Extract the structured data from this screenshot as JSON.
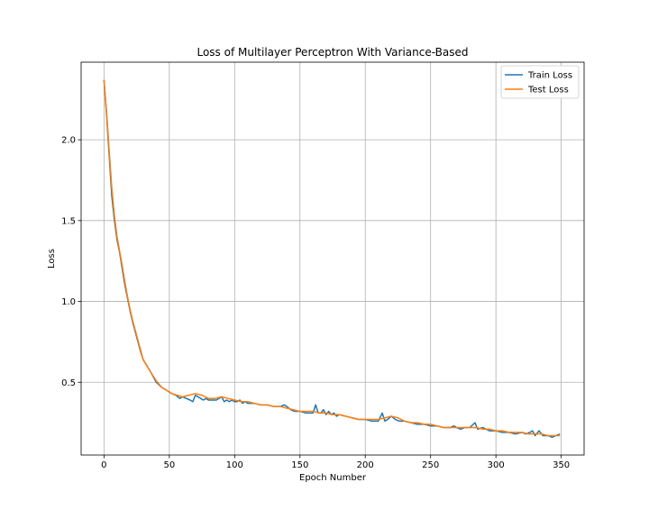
{
  "chart_data": {
    "type": "line",
    "title": "Loss of Multilayer Perceptron With Variance-Based",
    "xlabel": "Epoch Number",
    "ylabel": "Loss",
    "xlim": [
      -17.5,
      367.5
    ],
    "ylim": [
      0.05,
      2.48
    ],
    "xticks": [
      0,
      50,
      100,
      150,
      200,
      250,
      300,
      350
    ],
    "yticks": [
      0.5,
      1.0,
      1.5,
      2.0
    ],
    "ytick_labels": [
      "0.5",
      "1.0",
      "1.5",
      "2.0"
    ],
    "grid": true,
    "legend_position": "top-right",
    "series": [
      {
        "name": "Train Loss",
        "color": "#1f77b4",
        "points": [
          [
            0,
            2.37
          ],
          [
            2,
            2.15
          ],
          [
            4,
            1.9
          ],
          [
            6,
            1.65
          ],
          [
            8,
            1.5
          ],
          [
            10,
            1.38
          ],
          [
            12,
            1.3
          ],
          [
            14,
            1.2
          ],
          [
            16,
            1.1
          ],
          [
            18,
            1.02
          ],
          [
            20,
            0.94
          ],
          [
            22,
            0.87
          ],
          [
            24,
            0.81
          ],
          [
            26,
            0.75
          ],
          [
            28,
            0.69
          ],
          [
            30,
            0.64
          ],
          [
            33,
            0.6
          ],
          [
            36,
            0.56
          ],
          [
            40,
            0.5
          ],
          [
            44,
            0.47
          ],
          [
            48,
            0.45
          ],
          [
            52,
            0.43
          ],
          [
            55,
            0.42
          ],
          [
            58,
            0.4
          ],
          [
            60,
            0.41
          ],
          [
            63,
            0.4
          ],
          [
            66,
            0.39
          ],
          [
            68,
            0.38
          ],
          [
            70,
            0.42
          ],
          [
            72,
            0.41
          ],
          [
            74,
            0.4
          ],
          [
            76,
            0.39
          ],
          [
            78,
            0.4
          ],
          [
            80,
            0.39
          ],
          [
            83,
            0.39
          ],
          [
            86,
            0.39
          ],
          [
            88,
            0.4
          ],
          [
            90,
            0.41
          ],
          [
            92,
            0.38
          ],
          [
            94,
            0.39
          ],
          [
            96,
            0.38
          ],
          [
            98,
            0.39
          ],
          [
            100,
            0.38
          ],
          [
            102,
            0.38
          ],
          [
            104,
            0.39
          ],
          [
            106,
            0.37
          ],
          [
            108,
            0.38
          ],
          [
            110,
            0.37
          ],
          [
            115,
            0.37
          ],
          [
            120,
            0.36
          ],
          [
            125,
            0.36
          ],
          [
            130,
            0.35
          ],
          [
            135,
            0.35
          ],
          [
            138,
            0.36
          ],
          [
            140,
            0.35
          ],
          [
            143,
            0.33
          ],
          [
            146,
            0.32
          ],
          [
            150,
            0.32
          ],
          [
            155,
            0.31
          ],
          [
            160,
            0.31
          ],
          [
            162,
            0.36
          ],
          [
            164,
            0.31
          ],
          [
            166,
            0.31
          ],
          [
            168,
            0.33
          ],
          [
            170,
            0.3
          ],
          [
            172,
            0.32
          ],
          [
            174,
            0.3
          ],
          [
            176,
            0.31
          ],
          [
            178,
            0.29
          ],
          [
            180,
            0.3
          ],
          [
            185,
            0.29
          ],
          [
            190,
            0.28
          ],
          [
            195,
            0.27
          ],
          [
            200,
            0.27
          ],
          [
            205,
            0.26
          ],
          [
            210,
            0.26
          ],
          [
            213,
            0.31
          ],
          [
            215,
            0.26
          ],
          [
            217,
            0.27
          ],
          [
            220,
            0.29
          ],
          [
            223,
            0.27
          ],
          [
            226,
            0.26
          ],
          [
            230,
            0.26
          ],
          [
            235,
            0.25
          ],
          [
            240,
            0.24
          ],
          [
            245,
            0.24
          ],
          [
            250,
            0.23
          ],
          [
            255,
            0.23
          ],
          [
            260,
            0.22
          ],
          [
            265,
            0.22
          ],
          [
            268,
            0.23
          ],
          [
            270,
            0.22
          ],
          [
            273,
            0.21
          ],
          [
            276,
            0.22
          ],
          [
            280,
            0.22
          ],
          [
            284,
            0.25
          ],
          [
            286,
            0.21
          ],
          [
            290,
            0.22
          ],
          [
            295,
            0.2
          ],
          [
            300,
            0.2
          ],
          [
            305,
            0.19
          ],
          [
            310,
            0.19
          ],
          [
            315,
            0.18
          ],
          [
            320,
            0.19
          ],
          [
            323,
            0.18
          ],
          [
            326,
            0.19
          ],
          [
            328,
            0.2
          ],
          [
            330,
            0.17
          ],
          [
            333,
            0.2
          ],
          [
            336,
            0.17
          ],
          [
            340,
            0.17
          ],
          [
            343,
            0.16
          ],
          [
            346,
            0.17
          ],
          [
            349,
            0.18
          ]
        ]
      },
      {
        "name": "Test Loss",
        "color": "#ff7f0e",
        "points": [
          [
            0,
            2.37
          ],
          [
            2,
            2.17
          ],
          [
            4,
            1.93
          ],
          [
            6,
            1.7
          ],
          [
            8,
            1.53
          ],
          [
            10,
            1.4
          ],
          [
            12,
            1.31
          ],
          [
            14,
            1.22
          ],
          [
            16,
            1.12
          ],
          [
            18,
            1.03
          ],
          [
            20,
            0.95
          ],
          [
            22,
            0.88
          ],
          [
            24,
            0.82
          ],
          [
            26,
            0.76
          ],
          [
            28,
            0.7
          ],
          [
            30,
            0.64
          ],
          [
            33,
            0.6
          ],
          [
            36,
            0.56
          ],
          [
            40,
            0.51
          ],
          [
            44,
            0.47
          ],
          [
            48,
            0.45
          ],
          [
            52,
            0.43
          ],
          [
            56,
            0.42
          ],
          [
            60,
            0.41
          ],
          [
            65,
            0.42
          ],
          [
            70,
            0.43
          ],
          [
            75,
            0.42
          ],
          [
            80,
            0.4
          ],
          [
            85,
            0.4
          ],
          [
            90,
            0.41
          ],
          [
            95,
            0.4
          ],
          [
            100,
            0.39
          ],
          [
            105,
            0.38
          ],
          [
            110,
            0.38
          ],
          [
            115,
            0.37
          ],
          [
            120,
            0.36
          ],
          [
            125,
            0.36
          ],
          [
            130,
            0.35
          ],
          [
            135,
            0.35
          ],
          [
            140,
            0.34
          ],
          [
            145,
            0.33
          ],
          [
            150,
            0.32
          ],
          [
            155,
            0.32
          ],
          [
            160,
            0.32
          ],
          [
            165,
            0.31
          ],
          [
            170,
            0.31
          ],
          [
            175,
            0.3
          ],
          [
            180,
            0.3
          ],
          [
            185,
            0.29
          ],
          [
            190,
            0.28
          ],
          [
            195,
            0.27
          ],
          [
            200,
            0.27
          ],
          [
            205,
            0.27
          ],
          [
            210,
            0.27
          ],
          [
            215,
            0.28
          ],
          [
            220,
            0.29
          ],
          [
            225,
            0.28
          ],
          [
            230,
            0.26
          ],
          [
            235,
            0.25
          ],
          [
            240,
            0.25
          ],
          [
            245,
            0.24
          ],
          [
            250,
            0.24
          ],
          [
            255,
            0.23
          ],
          [
            260,
            0.22
          ],
          [
            265,
            0.22
          ],
          [
            270,
            0.22
          ],
          [
            275,
            0.22
          ],
          [
            280,
            0.22
          ],
          [
            285,
            0.22
          ],
          [
            290,
            0.21
          ],
          [
            295,
            0.21
          ],
          [
            300,
            0.2
          ],
          [
            305,
            0.2
          ],
          [
            310,
            0.19
          ],
          [
            315,
            0.19
          ],
          [
            320,
            0.19
          ],
          [
            325,
            0.18
          ],
          [
            330,
            0.18
          ],
          [
            335,
            0.18
          ],
          [
            340,
            0.17
          ],
          [
            345,
            0.17
          ],
          [
            349,
            0.17
          ]
        ]
      }
    ]
  }
}
